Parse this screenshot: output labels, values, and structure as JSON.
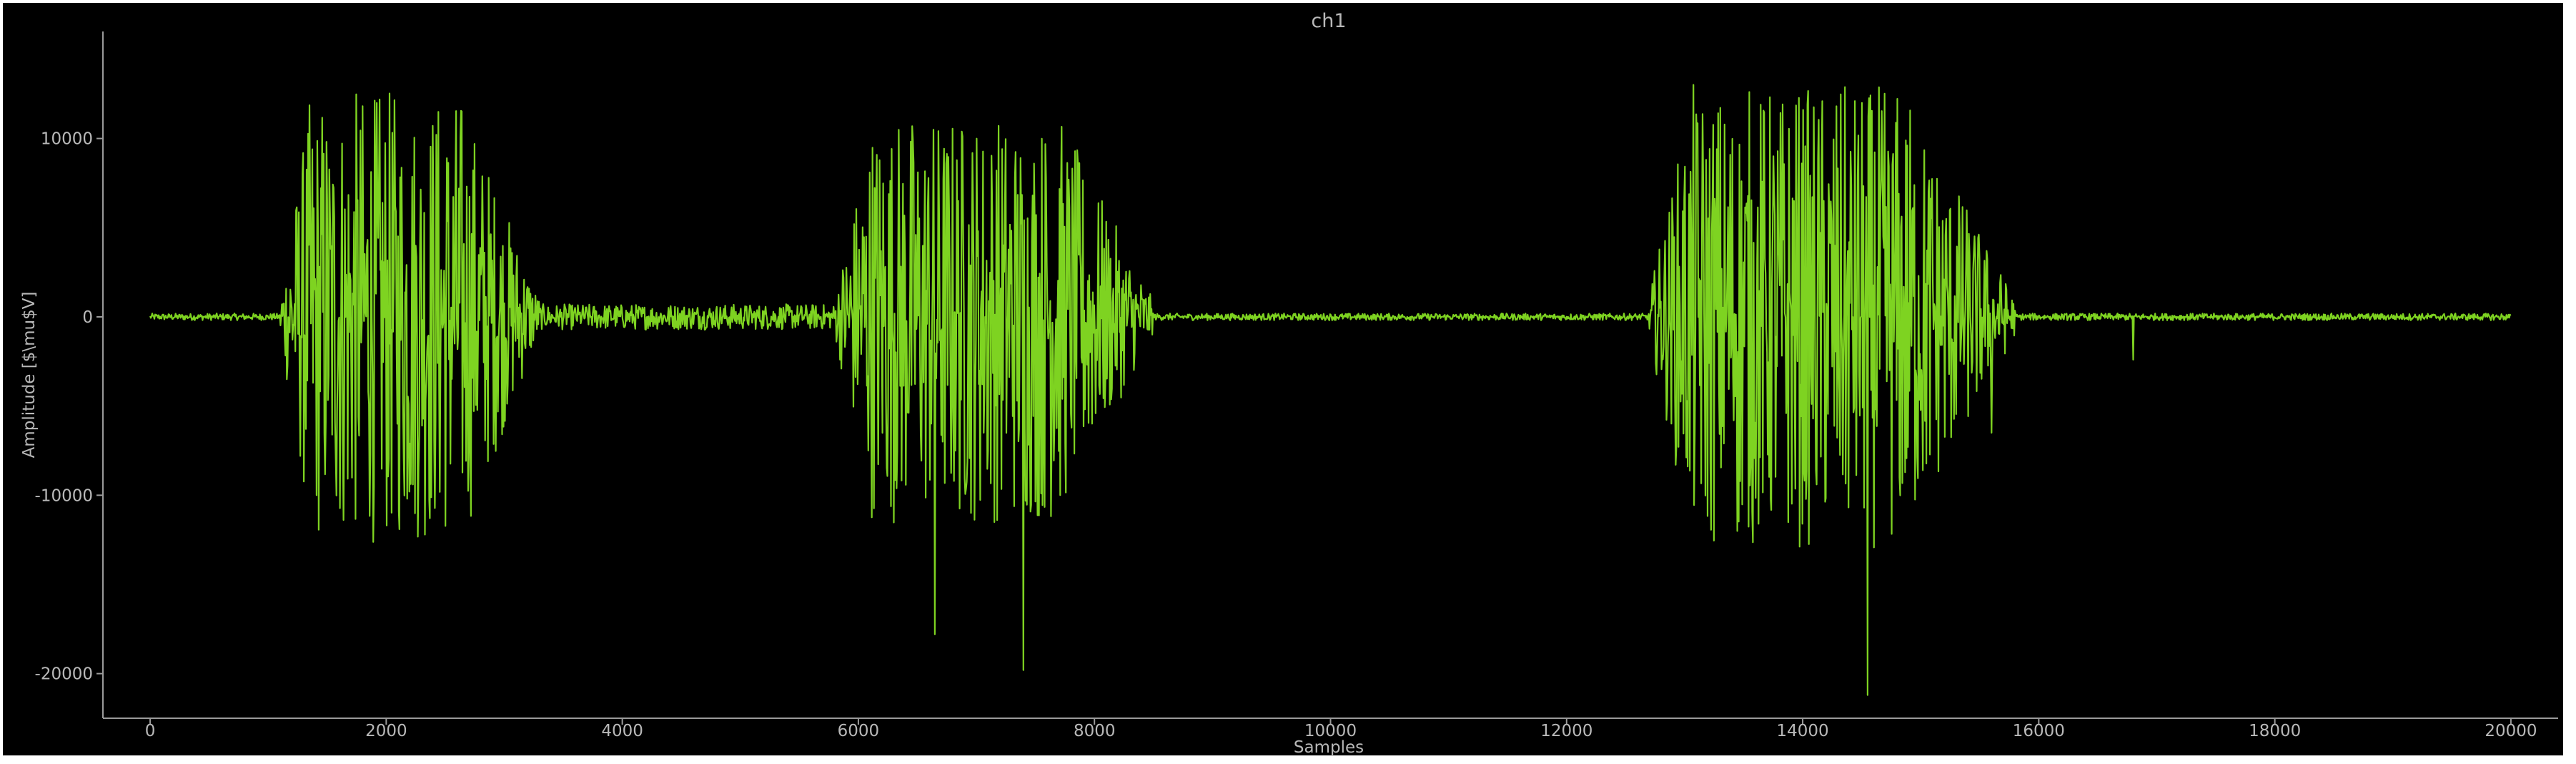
{
  "chart_data": {
    "type": "line",
    "title": "ch1",
    "xlabel": "Samples",
    "ylabel": "Amplitude [$\\mu$V]",
    "xlim": [
      -400,
      20400
    ],
    "ylim": [
      -22500,
      16000
    ],
    "x_ticks": [
      0,
      2000,
      4000,
      6000,
      8000,
      10000,
      12000,
      14000,
      16000,
      18000,
      20000
    ],
    "y_ticks": [
      -20000,
      -10000,
      0,
      10000
    ],
    "grid": false,
    "legend": "none",
    "x_range": [
      0,
      20000
    ],
    "series": [
      {
        "color": "#7ed321",
        "bursts": [
          {
            "x_start": 1100,
            "x_end": 3300,
            "peak_amplitude": 14500,
            "min_amplitude": -16500
          },
          {
            "x_start": 5800,
            "x_end": 8500,
            "peak_amplitude": 13200,
            "min_amplitude": -19800
          },
          {
            "x_start": 12700,
            "x_end": 15800,
            "peak_amplitude": 14800,
            "min_amplitude": -21200
          }
        ],
        "baseline": 0,
        "spikes": [
          {
            "x": 16800,
            "y": -2400
          },
          {
            "x": 15600,
            "y": -6500
          },
          {
            "x": 14550,
            "y": -21200
          },
          {
            "x": 6650,
            "y": -17800
          },
          {
            "x": 7400,
            "y": -19800
          }
        ]
      }
    ]
  }
}
